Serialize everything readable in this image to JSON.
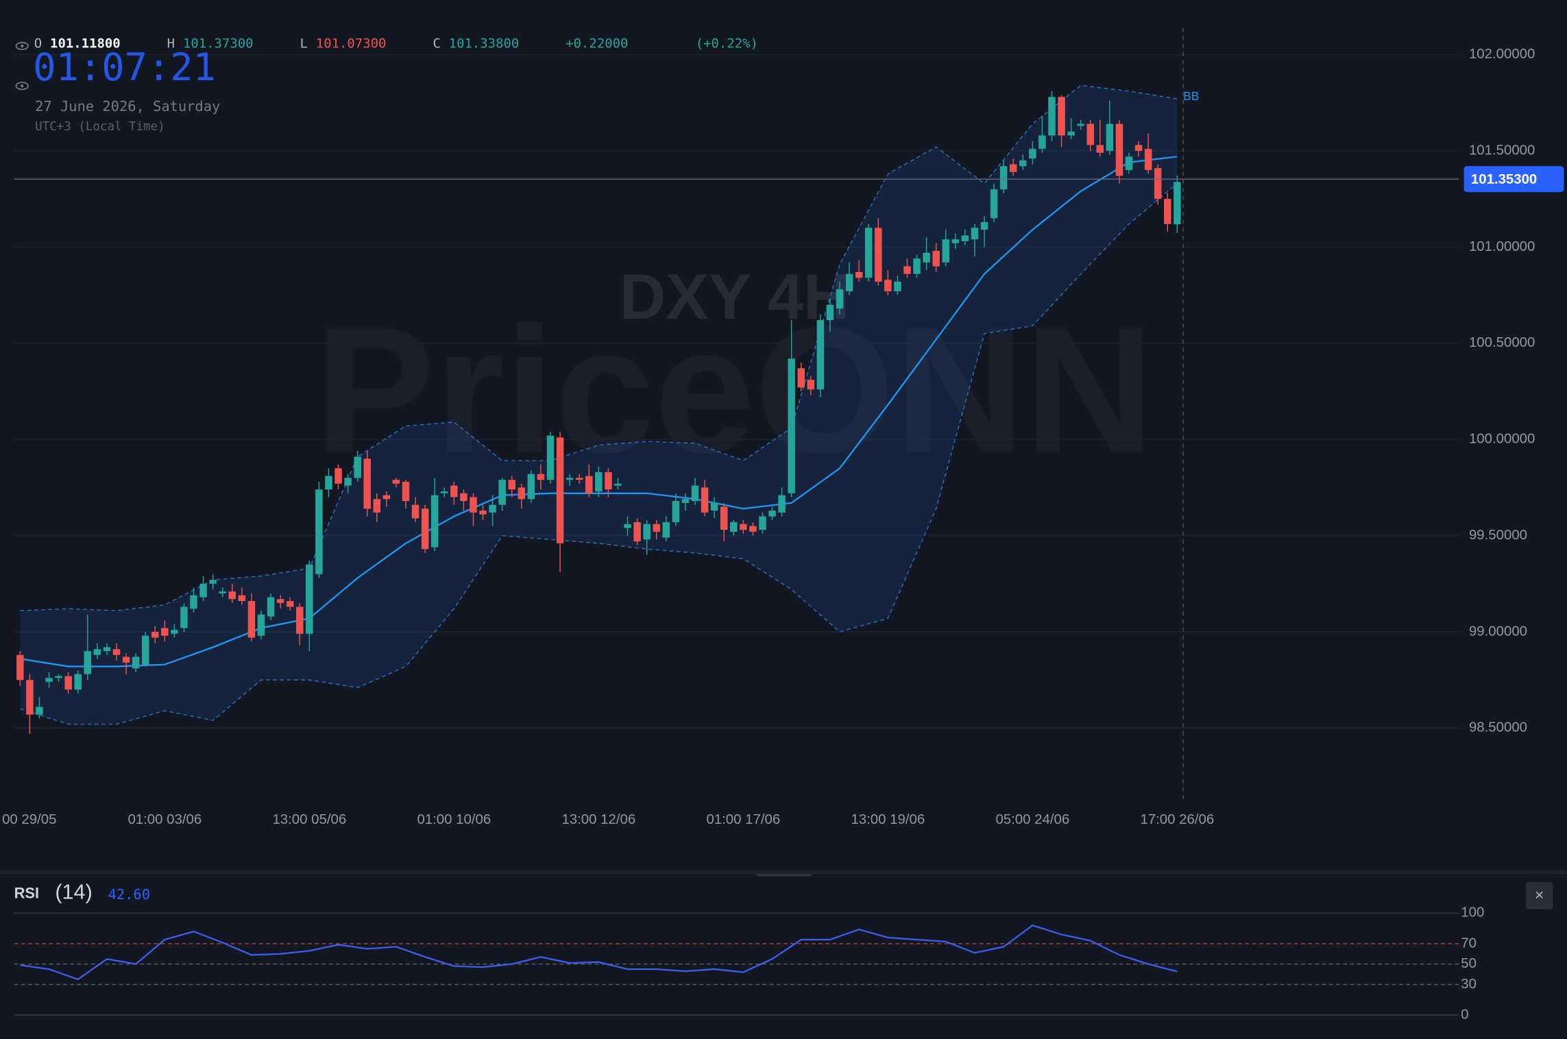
{
  "chart_data": {
    "type": "candlestick",
    "symbol": "DXY 4H",
    "brand": "PriceONN",
    "legend": {
      "open_key": "O",
      "open": "101.11800",
      "high_key": "H",
      "high": "101.37300",
      "low_key": "L",
      "low": "101.07300",
      "close_key": "C",
      "close": "101.33800",
      "change": "+0.22000",
      "change_pct": "(+0.22%)"
    },
    "clock": "01:07:21",
    "date": "27 June 2026, Saturday",
    "timezone": "UTC+3 (Local Time)",
    "up_color": "#26a69a",
    "down_color": "#ef5350",
    "candles": {
      "open": [
        98.88,
        98.75,
        98.57,
        98.74,
        98.76,
        98.77,
        98.7,
        98.78,
        98.88,
        98.9,
        98.91,
        98.87,
        98.81,
        98.83,
        99.0,
        99.02,
        98.99,
        99.02,
        99.12,
        99.18,
        99.25,
        99.2,
        99.21,
        99.19,
        99.16,
        98.98,
        99.08,
        99.17,
        99.16,
        99.13,
        98.99,
        99.3,
        99.74,
        99.85,
        99.76,
        99.8,
        99.9,
        99.69,
        99.71,
        99.79,
        99.78,
        99.66,
        99.64,
        99.44,
        99.72,
        99.76,
        99.72,
        99.7,
        99.63,
        99.62,
        99.66,
        99.79,
        99.75,
        99.69,
        99.82,
        99.79,
        100.01,
        99.79,
        99.8,
        99.81,
        99.73,
        99.83,
        99.76,
        99.54,
        99.57,
        99.48,
        99.56,
        99.49,
        99.57,
        99.67,
        99.68,
        99.75,
        99.63,
        99.65,
        99.52,
        99.56,
        99.55,
        99.53,
        99.6,
        99.62,
        99.72,
        100.37,
        100.31,
        100.26,
        100.62,
        100.68,
        100.77,
        100.87,
        100.84,
        101.1,
        100.83,
        100.77,
        100.9,
        100.86,
        100.92,
        100.98,
        100.92,
        101.02,
        101.03,
        101.04,
        101.09,
        101.15,
        101.3,
        101.43,
        101.42,
        101.46,
        101.51,
        101.58,
        101.78,
        101.58,
        101.63,
        101.64,
        101.53,
        101.5,
        101.64,
        101.4,
        101.53,
        101.51,
        101.41,
        101.25,
        101.118
      ],
      "high": [
        98.9,
        98.78,
        98.66,
        98.79,
        98.78,
        98.79,
        98.8,
        99.09,
        98.94,
        98.94,
        98.94,
        98.89,
        98.89,
        99.0,
        99.03,
        99.06,
        99.04,
        99.15,
        99.23,
        99.29,
        99.3,
        99.23,
        99.25,
        99.23,
        99.2,
        99.11,
        99.2,
        99.19,
        99.18,
        99.15,
        99.37,
        99.78,
        99.85,
        99.87,
        99.82,
        99.94,
        99.94,
        99.72,
        99.73,
        99.8,
        99.79,
        99.7,
        99.66,
        99.8,
        99.75,
        99.78,
        99.74,
        99.72,
        99.66,
        99.71,
        99.8,
        99.81,
        99.77,
        99.84,
        99.87,
        100.04,
        100.04,
        99.82,
        99.82,
        99.87,
        99.86,
        99.85,
        99.8,
        99.6,
        99.59,
        99.58,
        99.58,
        99.6,
        99.72,
        99.72,
        99.8,
        99.79,
        99.7,
        99.67,
        99.58,
        99.58,
        99.57,
        99.62,
        99.65,
        99.75,
        100.62,
        100.4,
        100.33,
        100.65,
        100.73,
        100.82,
        100.92,
        100.93,
        101.12,
        101.15,
        100.88,
        100.85,
        100.94,
        100.96,
        101.05,
        101.02,
        101.09,
        101.07,
        101.09,
        101.12,
        101.16,
        101.33,
        101.45,
        101.46,
        101.48,
        101.55,
        101.68,
        101.81,
        101.79,
        101.67,
        101.66,
        101.66,
        101.66,
        101.76,
        101.66,
        101.49,
        101.55,
        101.59,
        101.43,
        101.28,
        101.373
      ],
      "low": [
        98.72,
        98.47,
        98.55,
        98.71,
        98.74,
        98.68,
        98.68,
        98.75,
        98.86,
        98.88,
        98.85,
        98.78,
        98.79,
        98.82,
        98.94,
        98.95,
        98.97,
        99.0,
        99.1,
        99.16,
        99.22,
        99.18,
        99.15,
        99.14,
        98.95,
        98.96,
        99.06,
        99.12,
        99.11,
        98.93,
        98.9,
        99.28,
        99.7,
        99.74,
        99.72,
        99.78,
        99.6,
        99.57,
        99.65,
        99.75,
        99.64,
        99.57,
        99.41,
        99.42,
        99.7,
        99.66,
        99.63,
        99.55,
        99.58,
        99.55,
        99.63,
        99.7,
        99.64,
        99.67,
        99.74,
        99.77,
        99.31,
        99.76,
        99.77,
        99.7,
        99.7,
        99.7,
        99.74,
        99.5,
        99.45,
        99.4,
        99.48,
        99.47,
        99.55,
        99.63,
        99.66,
        99.6,
        99.59,
        99.47,
        99.5,
        99.51,
        99.5,
        99.51,
        99.58,
        99.6,
        99.7,
        100.25,
        100.23,
        100.22,
        100.56,
        100.65,
        100.75,
        100.82,
        100.82,
        100.8,
        100.75,
        100.75,
        100.84,
        100.84,
        100.88,
        100.87,
        100.9,
        100.99,
        101.01,
        100.95,
        101.0,
        101.13,
        101.28,
        101.37,
        101.4,
        101.43,
        101.49,
        101.55,
        101.52,
        101.56,
        101.61,
        101.5,
        101.47,
        101.48,
        101.33,
        101.38,
        101.47,
        101.38,
        101.22,
        101.08,
        101.073
      ],
      "close": [
        98.75,
        98.57,
        98.61,
        98.76,
        98.77,
        98.7,
        98.78,
        98.9,
        98.91,
        98.92,
        98.88,
        98.84,
        98.87,
        98.98,
        98.97,
        98.98,
        99.01,
        99.13,
        99.19,
        99.25,
        99.27,
        99.21,
        99.17,
        99.16,
        98.97,
        99.09,
        99.18,
        99.15,
        99.13,
        98.99,
        99.35,
        99.74,
        99.81,
        99.77,
        99.8,
        99.91,
        99.64,
        99.62,
        99.69,
        99.77,
        99.68,
        99.59,
        99.43,
        99.71,
        99.73,
        99.7,
        99.68,
        99.62,
        99.61,
        99.66,
        99.79,
        99.74,
        99.69,
        99.82,
        99.79,
        100.02,
        99.46,
        99.8,
        99.79,
        99.72,
        99.83,
        99.74,
        99.77,
        99.56,
        99.47,
        99.56,
        99.52,
        99.57,
        99.68,
        99.69,
        99.76,
        99.62,
        99.67,
        99.53,
        99.57,
        99.53,
        99.52,
        99.6,
        99.63,
        99.71,
        100.42,
        100.27,
        100.26,
        100.62,
        100.7,
        100.78,
        100.86,
        100.84,
        101.1,
        100.82,
        100.77,
        100.82,
        100.86,
        100.94,
        100.97,
        100.9,
        101.04,
        101.04,
        101.06,
        101.1,
        101.13,
        101.3,
        101.42,
        101.39,
        101.45,
        101.51,
        101.58,
        101.78,
        101.58,
        101.6,
        101.64,
        101.53,
        101.49,
        101.64,
        101.37,
        101.47,
        101.5,
        101.4,
        101.25,
        101.12,
        101.338
      ]
    },
    "bb": {
      "name": "BB",
      "color": "#2196f3",
      "x": [
        0,
        5,
        10,
        15,
        20,
        25,
        30,
        35,
        40,
        45,
        50,
        55,
        60,
        65,
        70,
        75,
        80,
        85,
        90,
        95,
        100,
        105,
        110,
        115,
        120
      ],
      "upper": [
        99.11,
        99.12,
        99.11,
        99.14,
        99.27,
        99.29,
        99.33,
        99.91,
        100.07,
        100.09,
        99.89,
        99.89,
        99.97,
        99.99,
        99.98,
        99.89,
        100.06,
        100.91,
        101.38,
        101.52,
        101.33,
        101.64,
        101.84,
        101.81,
        101.77
      ],
      "middle": [
        98.86,
        98.82,
        98.82,
        98.83,
        98.92,
        99.02,
        99.07,
        99.28,
        99.46,
        99.6,
        99.71,
        99.72,
        99.72,
        99.72,
        99.69,
        99.64,
        99.67,
        99.85,
        100.18,
        100.52,
        100.86,
        101.09,
        101.29,
        101.44,
        101.47
      ],
      "lower": [
        98.6,
        98.52,
        98.52,
        98.59,
        98.54,
        98.75,
        98.75,
        98.71,
        98.82,
        99.12,
        99.5,
        99.48,
        99.46,
        99.43,
        99.41,
        99.38,
        99.22,
        99.0,
        99.07,
        99.64,
        100.55,
        100.59,
        100.86,
        101.12,
        101.33
      ]
    },
    "current_price": {
      "value": 101.353,
      "label": "101.35300"
    },
    "ylim": [
      98.13,
      102.18
    ],
    "yticks": [
      {
        "value": 102,
        "label": "102.00000"
      },
      {
        "value": 101.5,
        "label": "101.50000"
      },
      {
        "value": 101,
        "label": "101.00000"
      },
      {
        "value": 100.5,
        "label": "100.50000"
      },
      {
        "value": 100,
        "label": "100.00000"
      },
      {
        "value": 99.5,
        "label": "99.50000"
      },
      {
        "value": 99,
        "label": "99.00000"
      },
      {
        "value": 98.5,
        "label": "98.50000"
      }
    ],
    "xticks": [
      {
        "value": 0,
        "label": "00 29/05"
      },
      {
        "value": 15,
        "label": "01:00 03/06"
      },
      {
        "value": 30,
        "label": "13:00 05/06"
      },
      {
        "value": 45,
        "label": "01:00 10/06"
      },
      {
        "value": 60,
        "label": "13:00 12/06"
      },
      {
        "value": 75,
        "label": "01:00 17/06"
      },
      {
        "value": 90,
        "label": "13:00 19/06"
      },
      {
        "value": 105,
        "label": "05:00 24/06"
      },
      {
        "value": 120,
        "label": "17:00 26/06"
      }
    ],
    "grid": true,
    "rsi": {
      "name": "RSI",
      "period": "(14)",
      "value_label": "42.60",
      "color": "#3d5ee8",
      "x": [
        0,
        3,
        6,
        9,
        12,
        15,
        18,
        21,
        24,
        27,
        30,
        33,
        36,
        39,
        42,
        45,
        48,
        51,
        54,
        57,
        60,
        63,
        66,
        69,
        72,
        75,
        78,
        81,
        84,
        87,
        90,
        93,
        96,
        99,
        102,
        105,
        108,
        111,
        114,
        117,
        120
      ],
      "values": [
        49,
        45,
        35,
        55,
        50,
        74,
        82,
        71,
        59,
        60,
        63,
        69,
        65,
        67,
        57,
        48,
        47,
        50,
        57,
        51,
        52,
        45,
        45,
        43,
        45,
        42,
        55,
        74,
        74,
        84,
        76,
        74,
        72,
        61,
        67,
        88,
        79,
        73,
        59,
        50,
        42.6
      ],
      "ylim": [
        0,
        100
      ],
      "yticks": [
        100,
        70,
        50,
        30,
        0
      ]
    }
  }
}
